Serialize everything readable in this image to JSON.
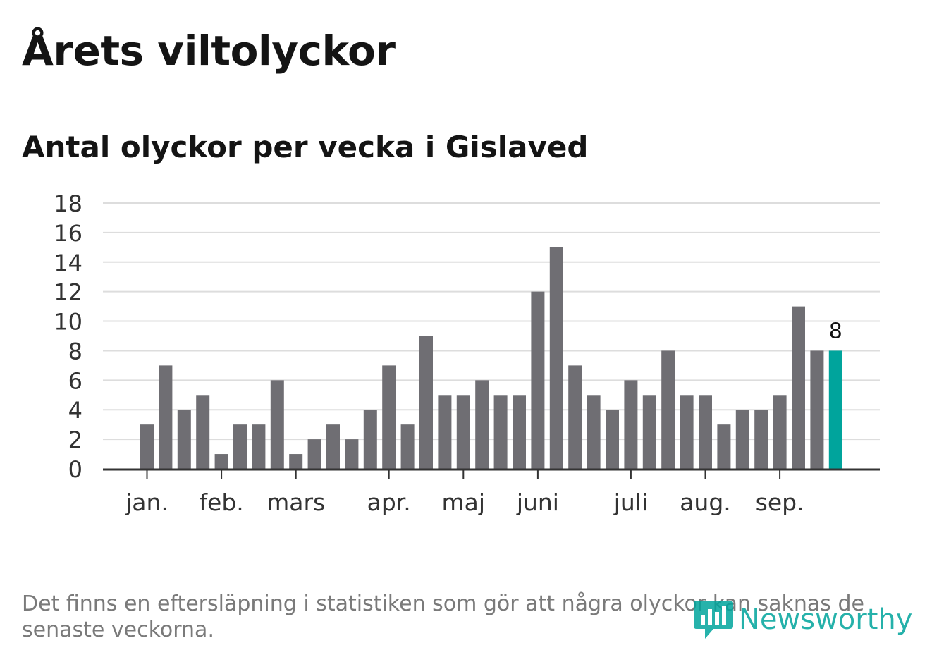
{
  "header": {
    "title": "Årets viltolyckor",
    "subtitle": "Antal olyckor per vecka i Gislaved"
  },
  "chart_data": {
    "type": "bar",
    "title": "Årets viltolyckor",
    "subtitle": "Antal olyckor per vecka i Gislaved",
    "xlabel": "",
    "ylabel": "",
    "ylim": [
      0,
      18
    ],
    "yticks": [
      0,
      2,
      4,
      6,
      8,
      10,
      12,
      14,
      16,
      18
    ],
    "grid": true,
    "weeks": [
      1,
      2,
      3,
      4,
      5,
      6,
      7,
      8,
      9,
      10,
      11,
      12,
      13,
      14,
      15,
      16,
      17,
      18,
      19,
      20,
      21,
      22,
      23,
      24,
      25,
      26,
      27,
      28,
      29,
      30,
      31,
      32,
      33,
      34,
      35,
      36,
      37,
      38
    ],
    "values": [
      3,
      7,
      4,
      5,
      1,
      3,
      3,
      6,
      1,
      2,
      3,
      2,
      4,
      7,
      3,
      9,
      5,
      5,
      6,
      5,
      5,
      12,
      15,
      7,
      5,
      4,
      6,
      5,
      8,
      5,
      5,
      3,
      4,
      4,
      5,
      11,
      8,
      8
    ],
    "month_labels": [
      {
        "label": "jan.",
        "week": 1
      },
      {
        "label": "feb.",
        "week": 5
      },
      {
        "label": "mars",
        "week": 9
      },
      {
        "label": "apr.",
        "week": 14
      },
      {
        "label": "maj",
        "week": 18
      },
      {
        "label": "juni",
        "week": 22
      },
      {
        "label": "juli",
        "week": 27
      },
      {
        "label": "aug.",
        "week": 31
      },
      {
        "label": "sep.",
        "week": 35
      }
    ],
    "highlight": {
      "week": 38,
      "value": 8,
      "label": "8"
    },
    "colors": {
      "bar": "#6f6e73",
      "highlight": "#00a49c",
      "grid": "#dddddd",
      "axis": "#333333"
    }
  },
  "footnote": "Det finns en eftersläpning i statistiken som gör att några olyckor kan saknas de senaste veckorna.",
  "logo": {
    "text": "Newsworthy",
    "color": "#00a49c"
  }
}
